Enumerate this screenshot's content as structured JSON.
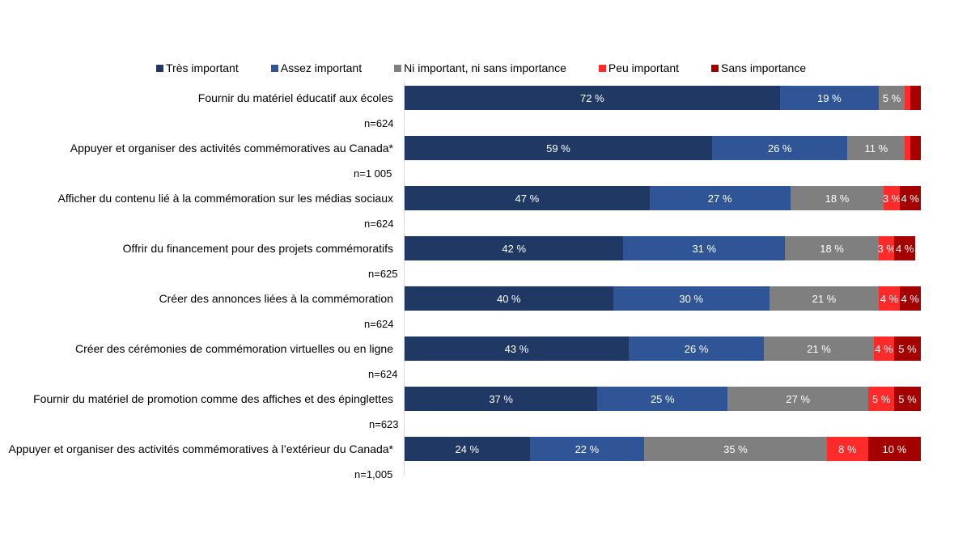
{
  "chart_data": {
    "type": "bar",
    "orientation": "horizontal",
    "stacked": true,
    "title": "",
    "xlabel": "",
    "ylabel": "",
    "xlim": [
      0,
      100
    ],
    "grid": false,
    "legend_position": "top",
    "unit_suffix": " %",
    "categories": [
      "Fournir du matériel éducatif aux écoles",
      "Appuyer et organiser des activités commémoratives au Canada*",
      "Afficher du contenu lié à la commémoration sur les médias sociaux",
      "Offrir du financement pour des projets commémoratifs",
      "Créer des annonces liées à la commémoration",
      "Créer des cérémonies de commémoration virtuelles ou en ligne",
      "Fournir du matériel de promotion comme des affiches et des épinglettes",
      "Appuyer et organiser des activités commémoratives à l’extérieur du Canada*"
    ],
    "sample_sizes": [
      "n=624",
      "n=1 005",
      "n=624",
      "n=625",
      "n=624",
      "n=624",
      "n=623",
      "n=1,005"
    ],
    "series": [
      {
        "name": "Très important",
        "color": "#1F3864",
        "values": [
          72,
          59,
          47,
          42,
          40,
          43,
          37,
          24
        ],
        "labeled": [
          true,
          true,
          true,
          true,
          true,
          true,
          true,
          true
        ]
      },
      {
        "name": "Assez important",
        "color": "#2F5597",
        "values": [
          19,
          26,
          27,
          31,
          30,
          26,
          25,
          22
        ],
        "labeled": [
          true,
          true,
          true,
          true,
          true,
          true,
          true,
          true
        ]
      },
      {
        "name": "Ni important, ni sans importance",
        "color": "#7F7F7F",
        "values": [
          5,
          11,
          18,
          18,
          21,
          21,
          27,
          35
        ],
        "labeled": [
          true,
          true,
          true,
          true,
          true,
          true,
          true,
          true
        ]
      },
      {
        "name": "Peu important",
        "color": "#FF2B2B",
        "values": [
          1,
          1,
          3,
          3,
          4,
          4,
          5,
          8
        ],
        "labeled": [
          false,
          false,
          true,
          true,
          true,
          true,
          true,
          true
        ]
      },
      {
        "name": "Sans importance",
        "color": "#A50000",
        "values": [
          2,
          2,
          4,
          4,
          4,
          5,
          5,
          10
        ],
        "labeled": [
          false,
          false,
          true,
          true,
          true,
          true,
          true,
          true
        ]
      }
    ]
  }
}
